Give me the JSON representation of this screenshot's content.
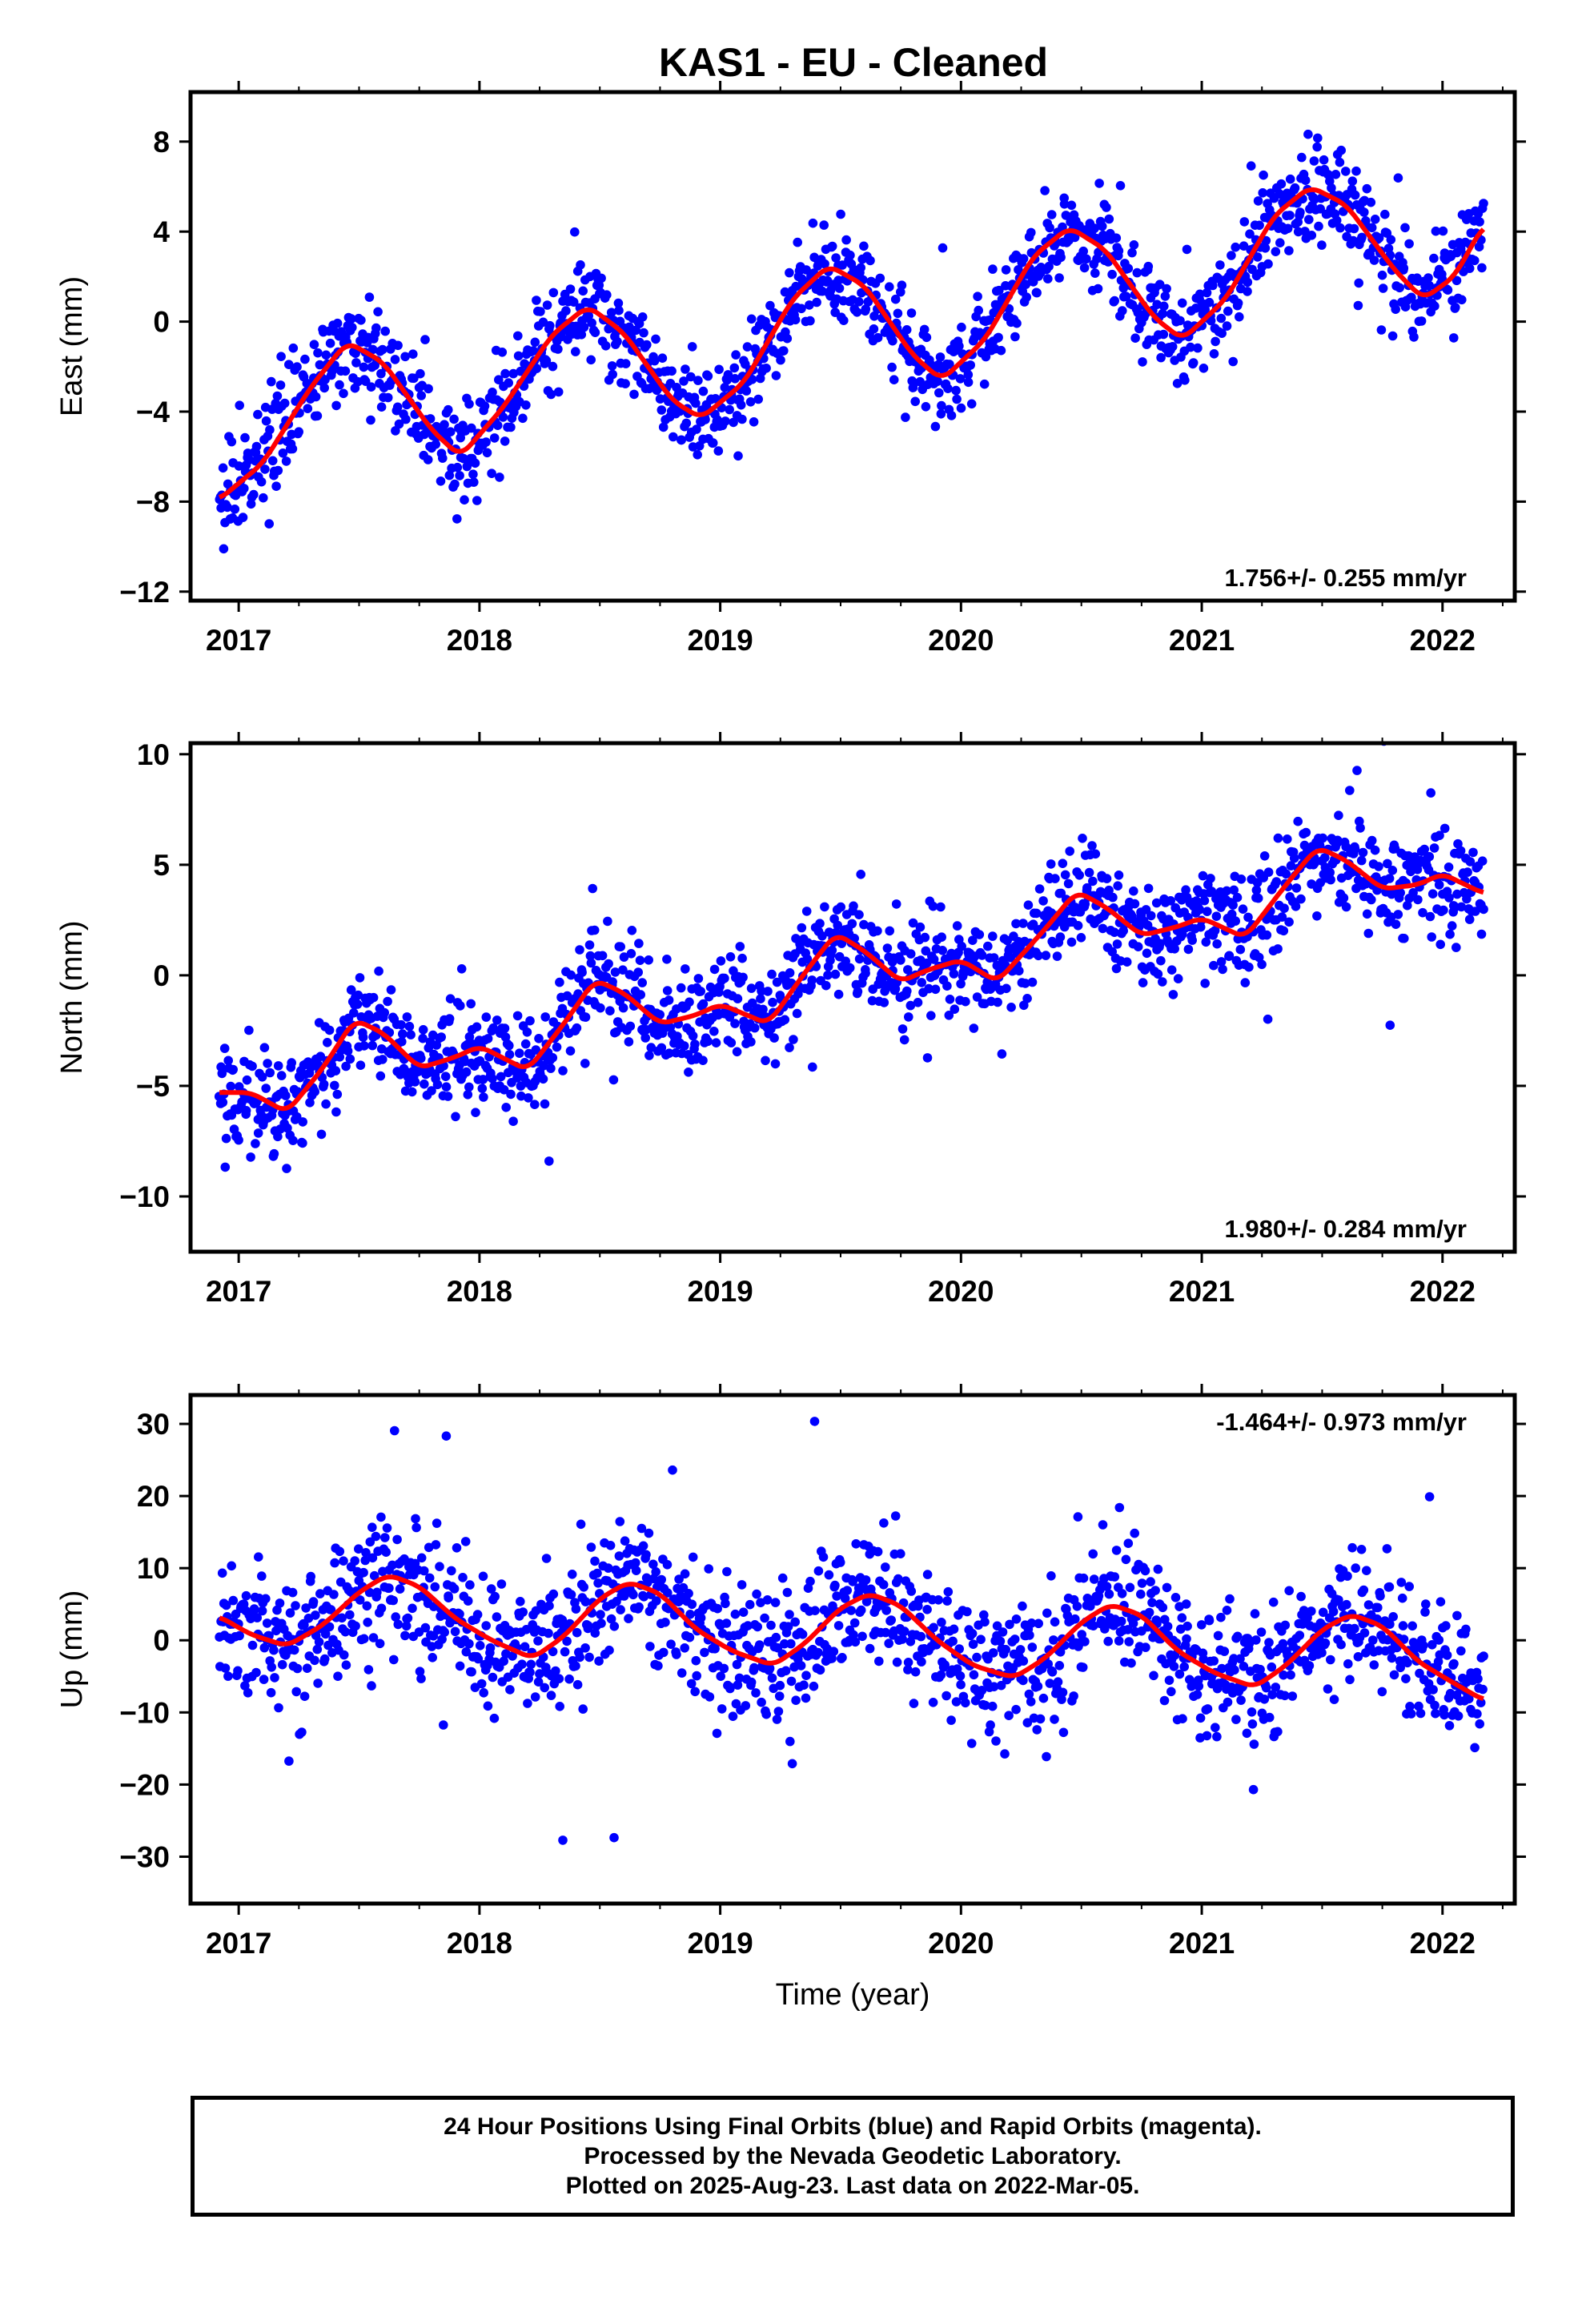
{
  "title": "KAS1  - EU - Cleaned",
  "footer_lines": [
    "24 Hour Positions Using Final Orbits (blue) and Rapid Orbits (magenta).",
    "Processed by the Nevada Geodetic Laboratory.",
    "Plotted on 2025-Aug-23. Last data on 2022-Mar-05."
  ],
  "colors": {
    "points": "#0000ff",
    "fit": "#ff0000",
    "frame": "#000000"
  },
  "chart_data": [
    {
      "type": "scatter",
      "ylabel": "East (mm)",
      "xlabel": "",
      "xlim": [
        2016.8,
        2022.3
      ],
      "ylim": [
        -12.4,
        10.2
      ],
      "xticks": [
        "2017",
        "2018",
        "2019",
        "2020",
        "2021",
        "2022"
      ],
      "yticks": [
        "8",
        "4",
        "0",
        "-4",
        "-8",
        "-12"
      ],
      "rate_label": "1.756+/- 0.255 mm/yr",
      "rate_position": "bottom-right",
      "series": [
        {
          "kind": "daily-positions",
          "x_range": [
            2016.92,
            2022.17
          ],
          "fit_samples": [
            [
              2016.92,
              -7.9
            ],
            [
              2017.1,
              -6.3
            ],
            [
              2017.3,
              -2.9
            ],
            [
              2017.45,
              -0.9
            ],
            [
              2017.6,
              -1.8
            ],
            [
              2017.8,
              -4.8
            ],
            [
              2017.92,
              -6.0
            ],
            [
              2018.1,
              -3.8
            ],
            [
              2018.3,
              -0.6
            ],
            [
              2018.45,
              0.7
            ],
            [
              2018.6,
              -0.5
            ],
            [
              2018.8,
              -3.5
            ],
            [
              2018.92,
              -4.3
            ],
            [
              2019.1,
              -2.7
            ],
            [
              2019.3,
              1.0
            ],
            [
              2019.45,
              2.5
            ],
            [
              2019.6,
              1.6
            ],
            [
              2019.8,
              -1.5
            ],
            [
              2019.92,
              -2.6
            ],
            [
              2020.1,
              -0.8
            ],
            [
              2020.3,
              2.9
            ],
            [
              2020.45,
              4.2
            ],
            [
              2020.6,
              3.2
            ],
            [
              2020.8,
              0.2
            ],
            [
              2020.92,
              -0.8
            ],
            [
              2021.1,
              1.0
            ],
            [
              2021.3,
              4.7
            ],
            [
              2021.45,
              6.0
            ],
            [
              2021.6,
              5.2
            ],
            [
              2021.8,
              2.3
            ],
            [
              2021.92,
              1.0
            ],
            [
              2022.05,
              2.0
            ],
            [
              2022.17,
              4.3
            ]
          ]
        }
      ]
    },
    {
      "type": "scatter",
      "ylabel": "North (mm)",
      "xlabel": "",
      "xlim": [
        2016.8,
        2022.3
      ],
      "ylim": [
        -12.5,
        10.5
      ],
      "xticks": [
        "2017",
        "2018",
        "2019",
        "2020",
        "2021",
        "2022"
      ],
      "yticks": [
        "10",
        "5",
        "0",
        "-5",
        "-10"
      ],
      "rate_label": "1.980+/- 0.284 mm/yr",
      "rate_position": "bottom-right",
      "series": [
        {
          "kind": "daily-positions",
          "x_range": [
            2016.92,
            2022.17
          ],
          "fit_samples": [
            [
              2016.92,
              -5.3
            ],
            [
              2017.05,
              -5.3
            ],
            [
              2017.2,
              -6.2
            ],
            [
              2017.35,
              -4.2
            ],
            [
              2017.48,
              -2.0
            ],
            [
              2017.6,
              -2.6
            ],
            [
              2017.75,
              -4.2
            ],
            [
              2017.9,
              -3.7
            ],
            [
              2018.0,
              -3.2
            ],
            [
              2018.2,
              -4.3
            ],
            [
              2018.35,
              -2.2
            ],
            [
              2018.48,
              -0.2
            ],
            [
              2018.6,
              -0.8
            ],
            [
              2018.75,
              -2.2
            ],
            [
              2018.9,
              -1.8
            ],
            [
              2019.0,
              -1.3
            ],
            [
              2019.2,
              -2.2
            ],
            [
              2019.35,
              0.1
            ],
            [
              2019.48,
              1.9
            ],
            [
              2019.6,
              1.1
            ],
            [
              2019.75,
              -0.3
            ],
            [
              2019.85,
              0.2
            ],
            [
              2020.0,
              0.7
            ],
            [
              2020.15,
              -0.3
            ],
            [
              2020.35,
              2.1
            ],
            [
              2020.48,
              3.8
            ],
            [
              2020.6,
              3.1
            ],
            [
              2020.75,
              1.8
            ],
            [
              2020.9,
              2.2
            ],
            [
              2021.0,
              2.6
            ],
            [
              2021.18,
              1.7
            ],
            [
              2021.35,
              4.1
            ],
            [
              2021.48,
              5.8
            ],
            [
              2021.6,
              5.2
            ],
            [
              2021.75,
              3.9
            ],
            [
              2021.9,
              4.1
            ],
            [
              2022.0,
              4.6
            ],
            [
              2022.17,
              3.7
            ]
          ]
        }
      ]
    },
    {
      "type": "scatter",
      "ylabel": "Up (mm)",
      "xlabel": "Time (year)",
      "xlim": [
        2016.8,
        2022.3
      ],
      "ylim": [
        -36.5,
        34
      ],
      "xticks": [
        "2017",
        "2018",
        "2019",
        "2020",
        "2021",
        "2022"
      ],
      "yticks": [
        "30",
        "20",
        "10",
        "0",
        "-10",
        "-20",
        "-30"
      ],
      "rate_label": "-1.464+/- 0.973 mm/yr",
      "rate_position": "top-right",
      "series": [
        {
          "kind": "daily-positions",
          "x_range": [
            2016.92,
            2022.17
          ],
          "fit_samples": [
            [
              2016.92,
              3.3
            ],
            [
              2017.05,
              0.8
            ],
            [
              2017.2,
              -0.8
            ],
            [
              2017.35,
              2.1
            ],
            [
              2017.5,
              6.7
            ],
            [
              2017.62,
              9.1
            ],
            [
              2017.75,
              7.5
            ],
            [
              2017.9,
              3.0
            ],
            [
              2018.05,
              0.0
            ],
            [
              2018.22,
              -2.5
            ],
            [
              2018.35,
              0.5
            ],
            [
              2018.5,
              5.8
            ],
            [
              2018.62,
              8.1
            ],
            [
              2018.75,
              6.5
            ],
            [
              2018.9,
              1.5
            ],
            [
              2019.05,
              -1.5
            ],
            [
              2019.22,
              -3.5
            ],
            [
              2019.35,
              -0.5
            ],
            [
              2019.5,
              4.5
            ],
            [
              2019.62,
              6.5
            ],
            [
              2019.75,
              4.8
            ],
            [
              2019.9,
              0.0
            ],
            [
              2020.05,
              -3.5
            ],
            [
              2020.22,
              -5.2
            ],
            [
              2020.35,
              -2.5
            ],
            [
              2020.5,
              2.5
            ],
            [
              2020.62,
              5.0
            ],
            [
              2020.75,
              3.5
            ],
            [
              2020.9,
              -1.5
            ],
            [
              2021.05,
              -4.5
            ],
            [
              2021.22,
              -6.5
            ],
            [
              2021.35,
              -3.5
            ],
            [
              2021.5,
              1.5
            ],
            [
              2021.62,
              3.6
            ],
            [
              2021.75,
              2.0
            ],
            [
              2021.9,
              -3.0
            ],
            [
              2022.05,
              -6.0
            ],
            [
              2022.17,
              -8.3
            ]
          ]
        }
      ]
    }
  ]
}
